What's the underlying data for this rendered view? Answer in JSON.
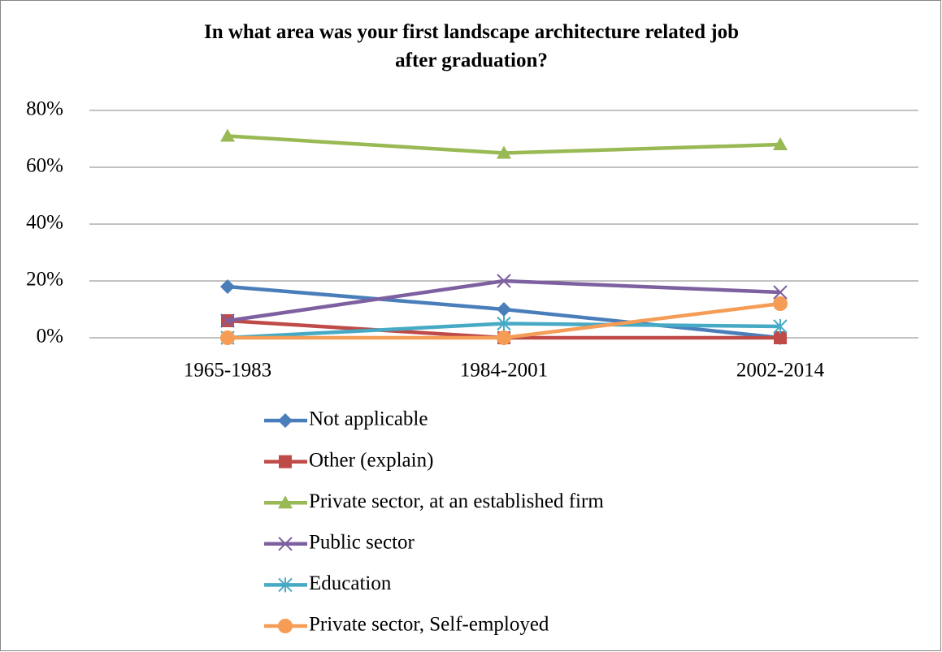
{
  "chart_data": {
    "type": "line",
    "title": "In what area was your first landscape architecture related job after graduation?",
    "categories": [
      "1965-1983",
      "1984-2001",
      "2002-2014"
    ],
    "series": [
      {
        "name": "Not applicable",
        "color": "#4a7ebb",
        "marker": "diamond",
        "values": [
          18,
          10,
          0
        ]
      },
      {
        "name": "Other (explain)",
        "color": "#be4b48",
        "marker": "square",
        "values": [
          6,
          0,
          0
        ]
      },
      {
        "name": "Private sector, at an established firm",
        "color": "#98b954",
        "marker": "triangle",
        "values": [
          71,
          65,
          68
        ]
      },
      {
        "name": "Public sector",
        "color": "#7d60a0",
        "marker": "x",
        "values": [
          6,
          20,
          16
        ]
      },
      {
        "name": "Education",
        "color": "#46aac5",
        "marker": "star",
        "values": [
          0,
          5,
          4
        ]
      },
      {
        "name": "Private sector, Self-employed",
        "color": "#f59d56",
        "marker": "circle",
        "values": [
          0,
          0,
          12
        ]
      }
    ],
    "ylim": [
      0,
      80
    ],
    "yticks": [
      {
        "value": 0,
        "label": "0%"
      },
      {
        "value": 20,
        "label": "20%"
      },
      {
        "value": 40,
        "label": "40%"
      },
      {
        "value": 60,
        "label": "60%"
      },
      {
        "value": 80,
        "label": "80%"
      }
    ],
    "grid": true,
    "legend": "bottom"
  }
}
